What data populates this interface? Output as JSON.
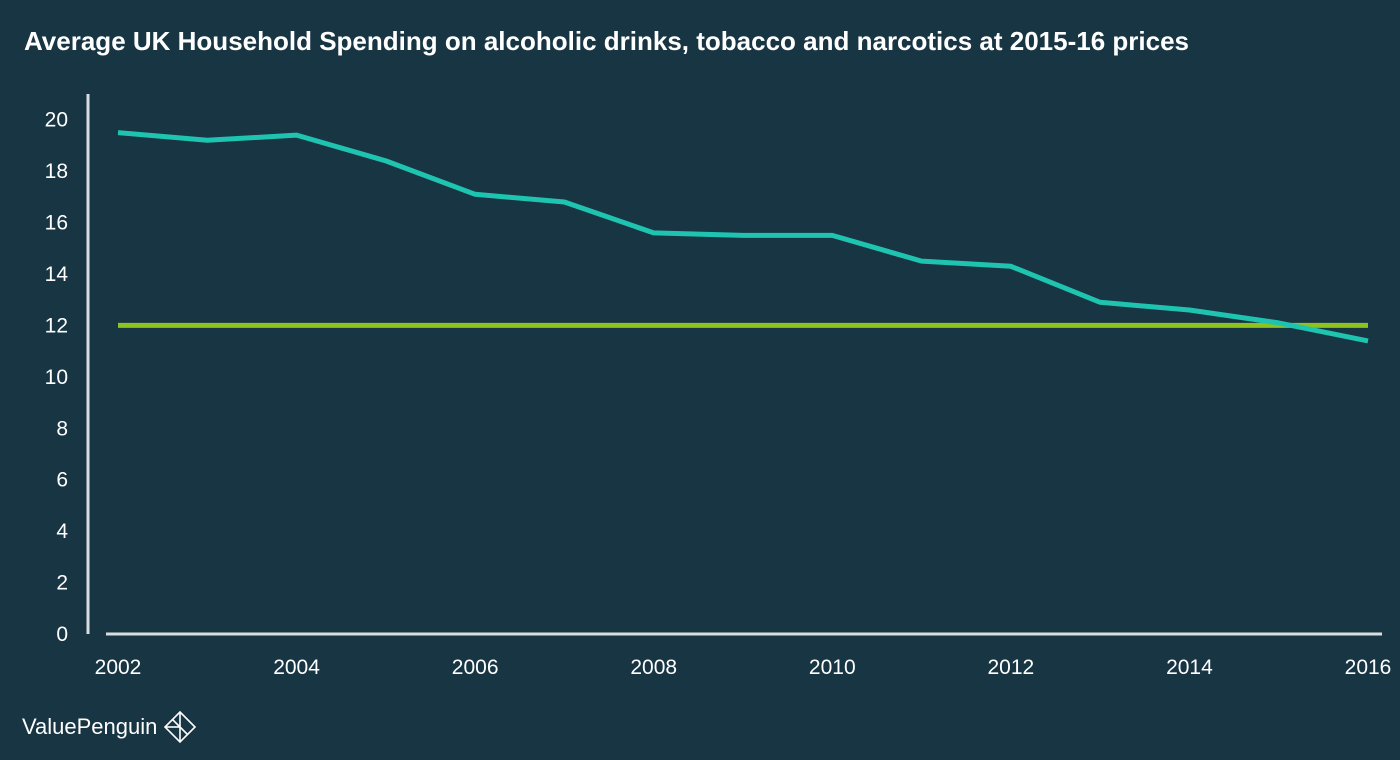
{
  "title": "Average UK Household Spending on alcoholic drinks, tobacco and narcotics at 2015-16 prices",
  "brand": {
    "name": "ValuePenguin",
    "icon": "penguin-logo-icon"
  },
  "colors": {
    "background": "#173543",
    "axis": "#d9dee2",
    "spending_line": "#1fc4b0",
    "reference_line": "#8dc21f",
    "text": "#ffffff"
  },
  "chart_data": {
    "type": "line",
    "title": "Average UK Household Spending on alcoholic drinks, tobacco and narcotics at 2015-16 prices",
    "xlabel": "",
    "ylabel": "",
    "xlim": [
      2002,
      2016
    ],
    "ylim": [
      0,
      21
    ],
    "x_ticks": [
      "2002",
      "2004",
      "2006",
      "2008",
      "2010",
      "2012",
      "2014",
      "2016"
    ],
    "y_ticks": [
      "0",
      "2",
      "4",
      "6",
      "8",
      "10",
      "12",
      "14",
      "16",
      "18",
      "20"
    ],
    "grid": false,
    "legend": "none",
    "x": [
      2002,
      2003,
      2004,
      2005,
      2006,
      2007,
      2008,
      2009,
      2010,
      2011,
      2012,
      2013,
      2014,
      2015,
      2016
    ],
    "series": [
      {
        "color": "#1fc4b0",
        "values": [
          19.5,
          19.2,
          19.4,
          18.4,
          17.1,
          16.8,
          15.6,
          15.5,
          15.5,
          14.5,
          14.3,
          12.9,
          12.6,
          12.1,
          11.4
        ]
      },
      {
        "color": "#8dc21f",
        "values": [
          12.0,
          12.0,
          12.0,
          12.0,
          12.0,
          12.0,
          12.0,
          12.0,
          12.0,
          12.0,
          12.0,
          12.0,
          12.0,
          12.0,
          12.0
        ]
      }
    ]
  }
}
